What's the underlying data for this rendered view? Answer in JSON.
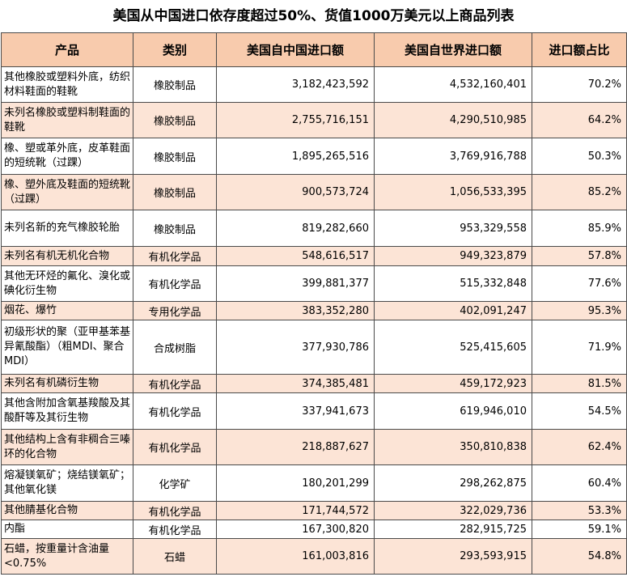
{
  "title": "美国从中国进口依存度超过50%、货值1000万美元以上商品列表",
  "headers": [
    "产品",
    "类别",
    "美国自中国进口额",
    "美国自世界进口额",
    "进口额占比"
  ],
  "rows": [
    {
      "product": "其他橡胶或塑料外底，纺织材料鞋面的鞋靴",
      "category": "橡胶制品",
      "china": "3,182,423,592",
      "world": "4,532,160,401",
      "share": "70.2%"
    },
    {
      "product": "未列名橡胶或塑料制鞋面的鞋靴",
      "category": "橡胶制品",
      "china": "2,755,716,151",
      "world": "4,290,510,985",
      "share": "64.2%"
    },
    {
      "product": "橡、塑或革外底，皮革鞋面的短统靴（过踝）",
      "category": "橡胶制品",
      "china": "1,895,265,516",
      "world": "3,769,916,788",
      "share": "50.3%"
    },
    {
      "product": "橡、塑外底及鞋面的短统靴（过踝）",
      "category": "橡胶制品",
      "china": "900,573,724",
      "world": "1,056,533,395",
      "share": "85.2%"
    },
    {
      "product": "未列名新的充气橡胶轮胎",
      "category": "橡胶制品",
      "china": "819,282,660",
      "world": "953,329,558",
      "share": "85.9%"
    },
    {
      "product": "未列名有机无机化合物",
      "category": "有机化学品",
      "china": "548,616,517",
      "world": "949,323,879",
      "share": "57.8%"
    },
    {
      "product": "其他无环烃的氟化、溴化或碘化衍生物",
      "category": "有机化学品",
      "china": "399,881,377",
      "world": "515,332,848",
      "share": "77.6%"
    },
    {
      "product": "烟花、爆竹",
      "category": "专用化学品",
      "china": "383,352,280",
      "world": "402,091,247",
      "share": "95.3%"
    },
    {
      "product": "初级形状的聚（亚甲基苯基异氰酸酯）（粗MDI、聚合MDI）",
      "category": "合成树脂",
      "china": "377,930,786",
      "world": "525,415,605",
      "share": "71.9%"
    },
    {
      "product": "未列名有机磷衍生物",
      "category": "有机化学品",
      "china": "374,385,481",
      "world": "459,172,923",
      "share": "81.5%"
    },
    {
      "product": "其他含附加含氧基羧酸及其酸酐等及其衍生物",
      "category": "有机化学品",
      "china": "337,941,673",
      "world": "619,946,010",
      "share": "54.5%"
    },
    {
      "product": "其他结构上含有非稠合三嗪环的化合物",
      "category": "有机化学品",
      "china": "218,887,627",
      "world": "350,810,838",
      "share": "62.4%"
    },
    {
      "product": "熔凝镁氧矿；烧结镁氧矿；其他氧化镁",
      "category": "化学矿",
      "china": "180,201,299",
      "world": "298,262,875",
      "share": "60.4%"
    },
    {
      "product": "其他腈基化合物",
      "category": "有机化学品",
      "china": "171,744,572",
      "world": "322,029,736",
      "share": "53.3%"
    },
    {
      "product": "内酯",
      "category": "有机化学品",
      "china": "167,300,820",
      "world": "282,915,725",
      "share": "59.1%"
    },
    {
      "product": "石蜡，按重量计含油量<0.75%",
      "category": "石蜡",
      "china": "161,003,816",
      "world": "293,593,915",
      "share": "54.8%"
    }
  ]
}
